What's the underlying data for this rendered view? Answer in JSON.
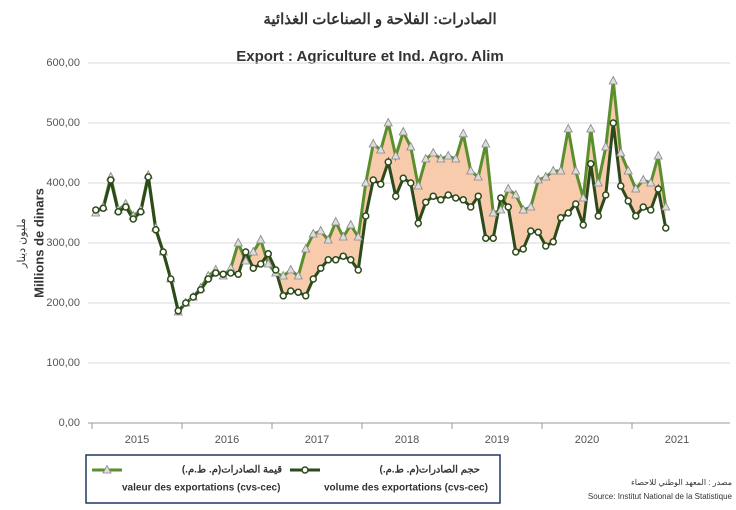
{
  "chart_data": {
    "type": "line",
    "title": "الصادرات: الفلاحة و الصناعات الغذائية",
    "subtitle": "Export :  Agriculture et Ind. Agro. Alim",
    "y_label": "Millions de dinars",
    "y_label_ar": "مليون دينار",
    "year_labels": [
      "2015",
      "2016",
      "2017",
      "2018",
      "2019",
      "2020",
      "2021"
    ],
    "ylim": [
      0,
      600
    ],
    "yticks": [
      {
        "value": 0,
        "label": "0,00"
      },
      {
        "value": 100,
        "label": "100,00"
      },
      {
        "value": 200,
        "label": "200,00"
      },
      {
        "value": 300,
        "label": "300,00"
      },
      {
        "value": 400,
        "label": "400,00"
      },
      {
        "value": 500,
        "label": "500,00"
      },
      {
        "value": 600,
        "label": "600,00"
      }
    ],
    "grid": true,
    "series": [
      {
        "name": "valeur des exportations (cvs-cec)",
        "name_ar": "قيمة الصادرات(م. ط.م.)",
        "color": "#5b8f2e",
        "marker": "triangle",
        "values": [
          350,
          360,
          410,
          355,
          365,
          345,
          355,
          413,
          325,
          285,
          240,
          185,
          200,
          210,
          225,
          245,
          255,
          245,
          258,
          300,
          270,
          285,
          305,
          265,
          250,
          245,
          255,
          245,
          290,
          315,
          320,
          305,
          335,
          310,
          330,
          310,
          400,
          465,
          455,
          500,
          445,
          485,
          460,
          395,
          440,
          450,
          440,
          445,
          440,
          482,
          420,
          410,
          465,
          350,
          355,
          390,
          380,
          355,
          360,
          405,
          410,
          420,
          420,
          490,
          420,
          375,
          490,
          400,
          460,
          570,
          450,
          420,
          390,
          405,
          400,
          445,
          360
        ]
      },
      {
        "name": "volume des exportations (cvs-cec)",
        "name_ar": "حجم الصادرات(م. ط.م.)",
        "color": "#2d4a1a",
        "marker": "circle",
        "values": [
          355,
          358,
          405,
          352,
          360,
          340,
          352,
          410,
          322,
          285,
          240,
          187,
          200,
          210,
          222,
          240,
          250,
          248,
          250,
          248,
          285,
          258,
          265,
          282,
          255,
          212,
          220,
          218,
          212,
          240,
          258,
          272,
          272,
          278,
          272,
          255,
          345,
          405,
          398,
          435,
          378,
          408,
          400,
          333,
          368,
          378,
          372,
          380,
          375,
          372,
          360,
          378,
          308,
          308,
          375,
          360,
          285,
          290,
          320,
          318,
          295,
          302,
          342,
          350,
          365,
          330,
          432,
          345,
          380,
          500,
          395,
          370,
          345,
          360,
          355,
          390,
          325
        ]
      }
    ],
    "source_ar": "مصدر : المعهد الوطني للاحصاء",
    "source": "Source: Institut National de la Statistique"
  }
}
